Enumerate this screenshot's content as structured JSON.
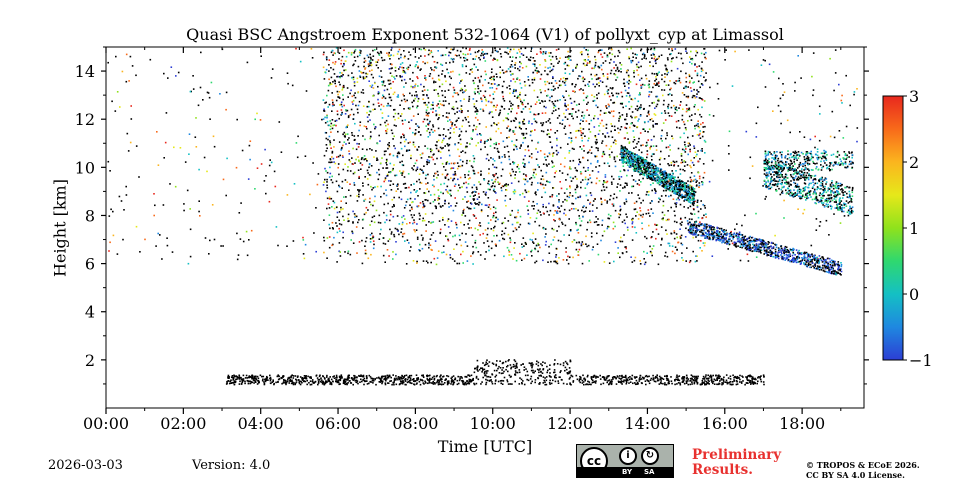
{
  "chart_data": {
    "type": "heatmap",
    "title": "Quasi BSC Angstroem Exponent 532-1064 (V1) of pollyxt_cyp at Limassol",
    "xlabel": "Time [UTC]",
    "ylabel": "Height [km]",
    "x_ticks": [
      "00:00",
      "02:00",
      "04:00",
      "06:00",
      "08:00",
      "10:00",
      "12:00",
      "14:00",
      "16:00",
      "18:00"
    ],
    "x_range_hours": [
      0,
      19.6
    ],
    "y_ticks": [
      "2",
      "4",
      "6",
      "8",
      "10",
      "12",
      "14"
    ],
    "y_range_km": [
      0,
      15
    ],
    "colorbar": {
      "ticks": [
        "3",
        "2",
        "1",
        "0",
        "−1"
      ],
      "range": [
        -1,
        3
      ],
      "colormap": [
        "#2c3ed4",
        "#1f88e0",
        "#14c0c4",
        "#2fd86f",
        "#8fe21c",
        "#e6e81a",
        "#fbb51e",
        "#f86a1a",
        "#e8281e"
      ]
    },
    "features": [
      {
        "label": "noise field",
        "t_start": 5.6,
        "t_end": 15.5,
        "h_bottom": 6.0,
        "h_top": 15.0,
        "value_range": [
          -1,
          3
        ]
      },
      {
        "label": "cirrus cloud 1",
        "t_start": 13.3,
        "t_end": 15.2,
        "h_bottom": 8.4,
        "h_top": 11.0,
        "value_range": [
          -0.5,
          0.5
        ]
      },
      {
        "label": "cirrus cloud 2",
        "t_start": 17.0,
        "t_end": 19.3,
        "h_bottom": 8.0,
        "h_top": 11.0,
        "value_range": [
          -0.5,
          0.6
        ]
      },
      {
        "label": "sloping layer",
        "t_start": 15.0,
        "t_end": 19.0,
        "h_bottom": 5.8,
        "h_top": 7.8,
        "value_range": [
          -1,
          0
        ]
      },
      {
        "label": "low aerosol layer",
        "t_start": 3.1,
        "t_end": 17.0,
        "h_bottom": 0.8,
        "h_top": 2.0,
        "value_range": [
          -1,
          -0.8
        ]
      }
    ]
  },
  "footer": {
    "date": "2026-03-03",
    "version": "Version: 4.0",
    "preliminary_line1": "Preliminary",
    "preliminary_line2": "Results.",
    "copyright_line1": "© TROPOS & ECoE 2026.",
    "copyright_line2": "CC BY SA 4.0 License.",
    "license_badge": {
      "main": "cc",
      "by": "BY",
      "sa": "SA"
    }
  }
}
